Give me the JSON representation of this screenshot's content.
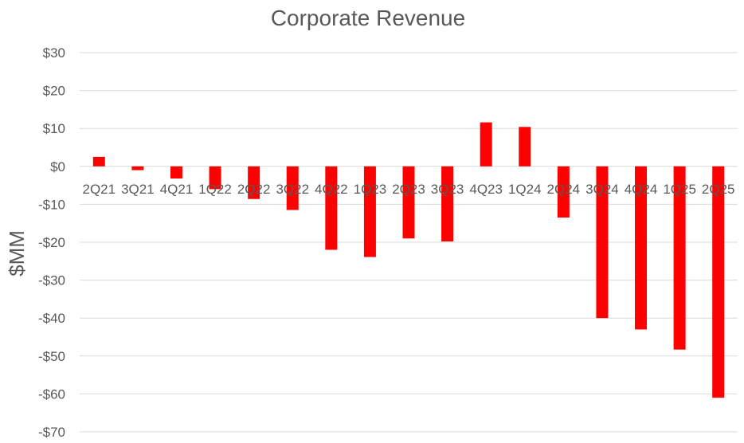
{
  "chart_data": {
    "type": "bar",
    "title": "Corporate Revenue",
    "xlabel": "",
    "ylabel": "$MM",
    "ylim": [
      -70,
      30
    ],
    "yticks": [
      30,
      20,
      10,
      0,
      -10,
      -20,
      -30,
      -40,
      -50,
      -60,
      -70
    ],
    "ytick_labels": [
      "$30",
      "$20",
      "$10",
      "$0",
      "-$10",
      "-$20",
      "-$30",
      "-$40",
      "-$50",
      "-$60",
      "-$70"
    ],
    "categories": [
      "2Q21",
      "3Q21",
      "4Q21",
      "1Q22",
      "2Q22",
      "3Q22",
      "4Q22",
      "1Q23",
      "2Q23",
      "3Q23",
      "4Q23",
      "1Q24",
      "2Q24",
      "3Q24",
      "4Q24",
      "1Q25",
      "2Q25"
    ],
    "series": [
      {
        "values": [
          2.5,
          -1.0,
          -3.2,
          -6.0,
          -8.6,
          -11.5,
          -22.0,
          -23.9,
          -19.0,
          -19.8,
          11.6,
          10.4,
          -13.5,
          -40.0,
          -43.0,
          -48.3,
          -61.0
        ],
        "color": "#ff0000"
      }
    ],
    "grid": true,
    "legend": "none"
  }
}
